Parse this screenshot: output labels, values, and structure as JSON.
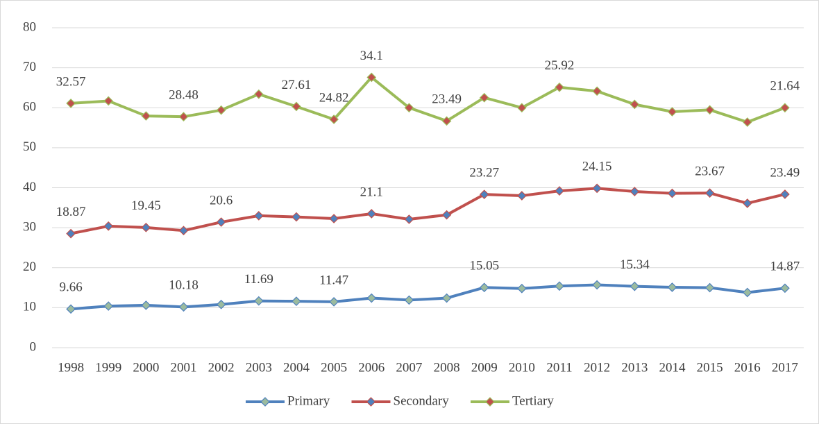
{
  "chart_data": {
    "type": "stacked-line",
    "categories": [
      "1998",
      "1999",
      "2000",
      "2001",
      "2002",
      "2003",
      "2004",
      "2005",
      "2006",
      "2007",
      "2008",
      "2009",
      "2010",
      "2011",
      "2012",
      "2013",
      "2014",
      "2015",
      "2016",
      "2017"
    ],
    "series": [
      {
        "name": "Primary",
        "color": "#4f81bd",
        "marker_color": "#9bbb9f",
        "values": [
          9.66,
          10.4,
          10.6,
          10.18,
          10.8,
          11.69,
          11.6,
          11.47,
          12.4,
          11.9,
          12.4,
          15.05,
          14.8,
          15.4,
          15.7,
          15.34,
          15.1,
          15.0,
          13.8,
          14.87
        ],
        "labeled_points": [
          0,
          3,
          5,
          7,
          11,
          15,
          19
        ]
      },
      {
        "name": "Secondary",
        "color": "#c0504d",
        "marker_color": "#4f81bd",
        "values": [
          18.87,
          20.0,
          19.45,
          19.1,
          20.6,
          21.3,
          21.1,
          20.8,
          21.1,
          20.2,
          20.8,
          23.27,
          23.2,
          23.8,
          24.15,
          23.7,
          23.5,
          23.67,
          22.3,
          23.49
        ],
        "labeled_points": [
          0,
          2,
          4,
          8,
          11,
          14,
          17,
          19
        ]
      },
      {
        "name": "Tertiary",
        "color": "#9bbb59",
        "marker_color": "#c0504d",
        "values": [
          32.57,
          31.3,
          27.9,
          28.48,
          28.0,
          30.4,
          27.61,
          24.82,
          34.1,
          27.9,
          23.49,
          24.2,
          22.0,
          25.92,
          24.3,
          21.8,
          20.4,
          20.8,
          20.3,
          21.64
        ],
        "labeled_points": [
          0,
          3,
          6,
          7,
          8,
          10,
          13,
          19
        ]
      }
    ],
    "ylim": [
      0,
      80
    ],
    "yticks": [
      0,
      10,
      20,
      30,
      40,
      50,
      60,
      70,
      80
    ],
    "grid": true,
    "legend": "bottom"
  }
}
